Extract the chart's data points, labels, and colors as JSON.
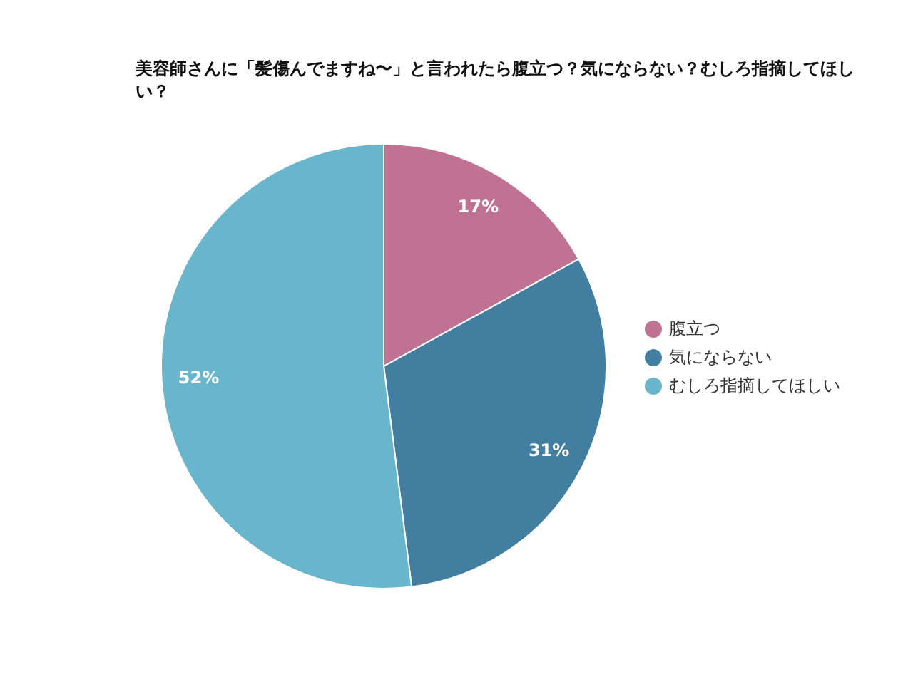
{
  "chart_data": {
    "type": "pie",
    "title": "美容師さんに「髪傷んでますね〜」と言われたら腹立つ？気にならない？むしろ指摘してほしい？",
    "categories": [
      "腹立つ",
      "気にならない",
      "むしろ指摘してほしい"
    ],
    "values": [
      17,
      31,
      52
    ],
    "value_labels": [
      "17%",
      "31%",
      "52%"
    ],
    "colors": [
      "#c07292",
      "#427ea0",
      "#69b5cb"
    ],
    "legend": "right"
  }
}
